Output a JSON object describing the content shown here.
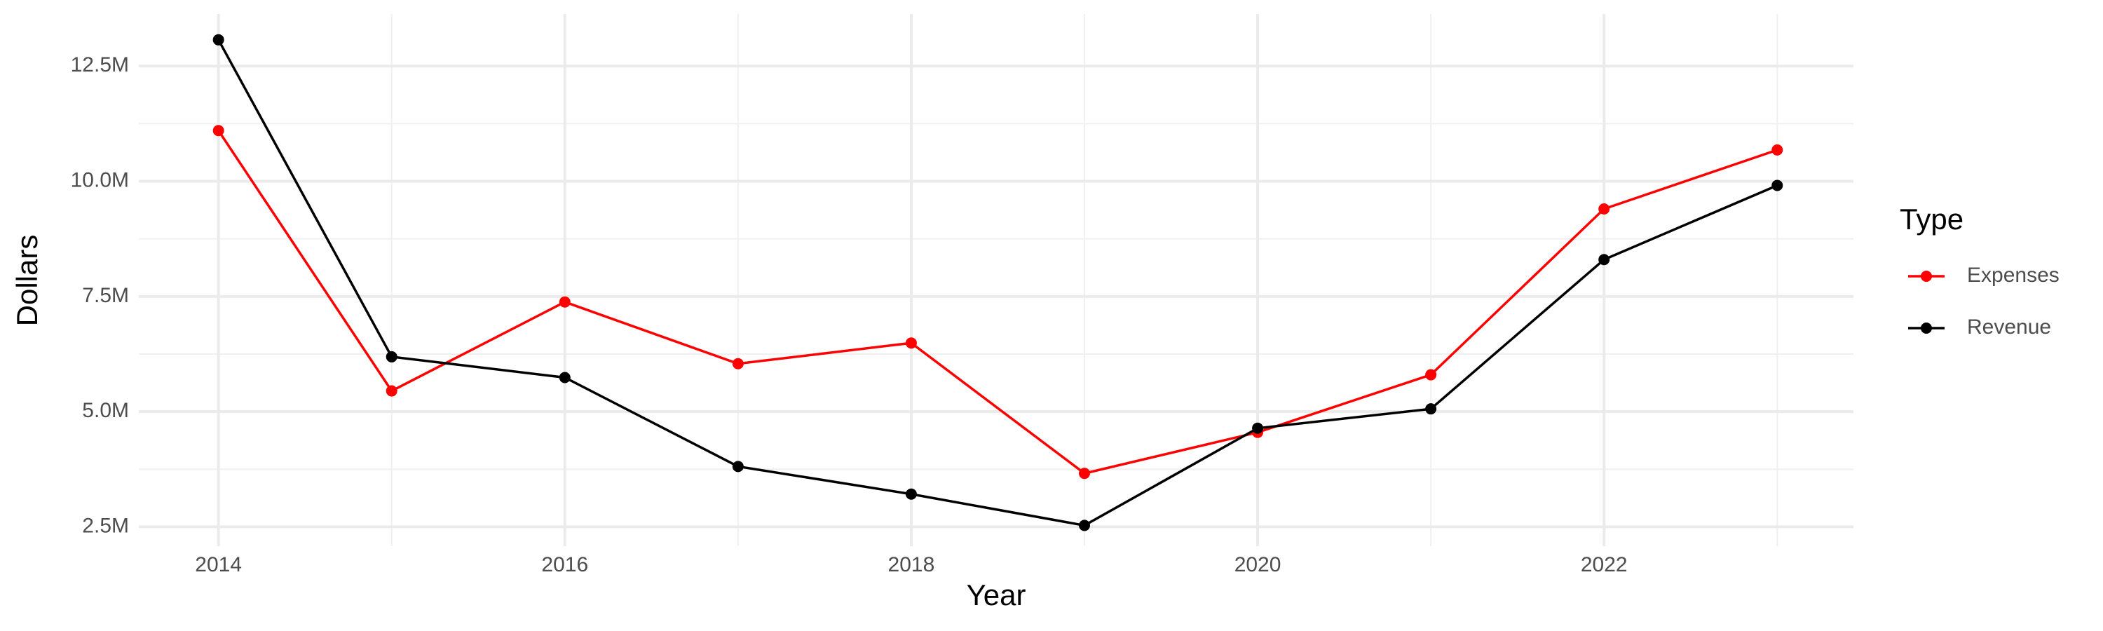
{
  "chart_data": {
    "type": "line",
    "x_label": "Year",
    "y_label": "Dollars",
    "legend_title": "Type",
    "x": [
      2014,
      2015,
      2016,
      2017,
      2018,
      2019,
      2020,
      2021,
      2022,
      2023
    ],
    "series": [
      {
        "name": "Expenses",
        "color": "#ff0000",
        "values": [
          11100000,
          5450000,
          7380000,
          6040000,
          6490000,
          3660000,
          4550000,
          5800000,
          9400000,
          10680000
        ]
      },
      {
        "name": "Revenue",
        "color": "#000000",
        "values": [
          13070000,
          6190000,
          5740000,
          3810000,
          3210000,
          2530000,
          4640000,
          5060000,
          8300000,
          9910000
        ]
      }
    ],
    "xlim": [
      2013.54,
      2023.44
    ],
    "xticks": [
      2014,
      2016,
      2018,
      2020,
      2022
    ],
    "ylim": [
      2080000,
      13630000
    ],
    "yticks": [
      {
        "value": 2500000,
        "label": "2.5M"
      },
      {
        "value": 5000000,
        "label": "5.0M"
      },
      {
        "value": 7500000,
        "label": "7.5M"
      },
      {
        "value": 10000000,
        "label": "10.0M"
      },
      {
        "value": 12500000,
        "label": "12.5M"
      }
    ],
    "grid": true,
    "legend": "right"
  }
}
